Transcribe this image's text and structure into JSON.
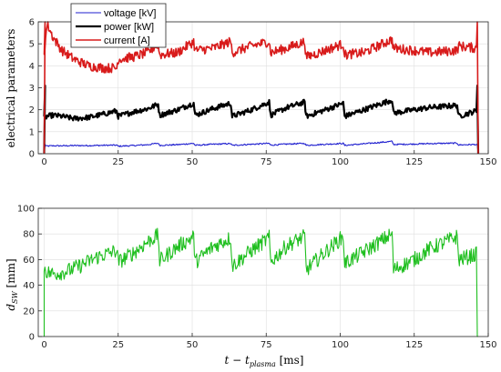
{
  "chart_data": [
    {
      "type": "line",
      "ylabel": "electrical parameters",
      "xlim": [
        -2,
        150
      ],
      "ylim": [
        0,
        6
      ],
      "xticks": [
        "0",
        "25",
        "50",
        "75",
        "100",
        "125",
        "150"
      ],
      "yticks": [
        "0",
        "1",
        "2",
        "3",
        "4",
        "5",
        "6"
      ],
      "grid": true,
      "legend_position": "top-left",
      "series": [
        {
          "name": "voltage [kV]",
          "color": "#1f1fcf",
          "x": [
            0,
            1,
            3,
            6,
            10,
            15,
            20,
            24.5,
            25,
            30,
            35,
            38.5,
            39,
            45,
            50.5,
            51,
            57,
            63,
            63.5,
            70,
            76,
            76.5,
            82,
            88,
            88.5,
            95,
            101,
            101.5,
            108,
            117.5,
            118,
            125,
            130,
            139.5,
            140,
            146
          ],
          "y": [
            0.35,
            0.35,
            0.36,
            0.36,
            0.37,
            0.37,
            0.38,
            0.39,
            0.34,
            0.37,
            0.41,
            0.48,
            0.38,
            0.41,
            0.47,
            0.38,
            0.43,
            0.46,
            0.38,
            0.43,
            0.47,
            0.39,
            0.44,
            0.47,
            0.38,
            0.43,
            0.47,
            0.38,
            0.45,
            0.56,
            0.42,
            0.44,
            0.46,
            0.48,
            0.4,
            0.42
          ]
        },
        {
          "name": "power [kW]",
          "color": "#000000",
          "x": [
            0,
            1,
            3,
            6,
            10,
            15,
            20,
            24.5,
            25,
            30,
            35,
            38.5,
            39,
            45,
            50.5,
            51,
            57,
            63,
            63.5,
            70,
            76,
            76.5,
            82,
            88,
            88.5,
            95,
            101,
            101.5,
            108,
            117.5,
            118,
            125,
            130,
            139.5,
            140,
            146
          ],
          "y": [
            1.6,
            1.7,
            1.75,
            1.7,
            1.6,
            1.65,
            1.8,
            1.95,
            1.7,
            1.9,
            2.05,
            2.25,
            1.75,
            2.0,
            2.3,
            1.75,
            2.05,
            2.3,
            1.7,
            2.0,
            2.35,
            1.75,
            2.1,
            2.35,
            1.7,
            2.0,
            2.3,
            1.7,
            2.0,
            2.45,
            1.85,
            2.0,
            2.1,
            2.2,
            1.7,
            1.95
          ]
        },
        {
          "name": "current [A]",
          "color": "#d81b1b",
          "x": [
            0,
            1,
            3,
            6,
            10,
            15,
            20,
            24.5,
            25,
            30,
            35,
            38.5,
            39,
            45,
            50.5,
            51,
            57,
            63,
            63.5,
            70,
            76,
            76.5,
            82,
            88,
            88.5,
            95,
            101,
            101.5,
            108,
            117.5,
            118,
            125,
            130,
            139.5,
            140,
            146
          ],
          "y": [
            4.6,
            5.9,
            5.3,
            4.7,
            4.3,
            4.0,
            3.9,
            3.9,
            4.3,
            4.4,
            4.6,
            5.0,
            4.5,
            4.6,
            5.1,
            4.7,
            4.8,
            5.1,
            4.6,
            4.9,
            5.1,
            4.6,
            4.8,
            5.1,
            4.4,
            4.7,
            5.0,
            4.5,
            4.6,
            5.2,
            4.8,
            4.7,
            4.6,
            4.7,
            4.9,
            4.8
          ]
        }
      ]
    },
    {
      "type": "line",
      "xlabel": "t − t_plasma [ms]",
      "ylabel": "d_SW [mm]",
      "xlim": [
        -2,
        150
      ],
      "ylim": [
        0,
        100
      ],
      "xticks": [
        "0",
        "25",
        "50",
        "75",
        "100",
        "125",
        "150"
      ],
      "yticks": [
        "0",
        "20",
        "40",
        "60",
        "80",
        "100"
      ],
      "grid": true,
      "series": [
        {
          "name": "",
          "color": "#1fbf1f",
          "x": [
            0,
            1,
            3,
            6,
            9,
            12,
            18,
            24.5,
            25,
            30,
            35,
            38.5,
            39,
            45,
            50.5,
            51,
            57,
            63,
            63.5,
            70,
            76,
            76.5,
            82,
            88,
            88.5,
            95,
            101,
            101.5,
            108,
            117.5,
            118,
            125,
            130,
            139.5,
            140,
            146
          ],
          "y": [
            55,
            50,
            49,
            50,
            52,
            55,
            62,
            67,
            58,
            65,
            74,
            79,
            59,
            70,
            78,
            58,
            70,
            77,
            55,
            67,
            77,
            58,
            71,
            78,
            52,
            66,
            78,
            57,
            66,
            80,
            52,
            60,
            68,
            78,
            60,
            64
          ]
        }
      ]
    }
  ],
  "labels": {
    "top_ylabel": "electrical parameters",
    "bottom_ylabel_main": "d",
    "bottom_ylabel_sub": "SW",
    "bottom_ylabel_unit": " [mm]",
    "xlabel_t": "t",
    "xlabel_minus": " − ",
    "xlabel_t2": "t",
    "xlabel_sub": "plasma",
    "xlabel_unit": " [ms]"
  }
}
